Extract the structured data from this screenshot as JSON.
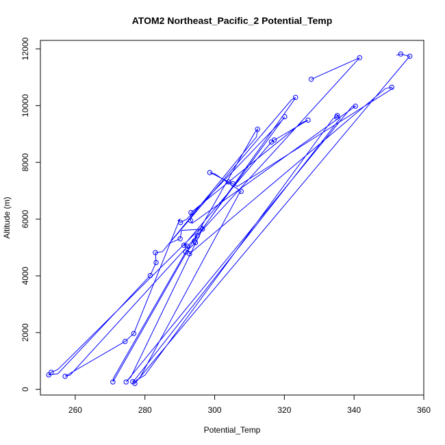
{
  "chart_data": {
    "type": "line",
    "title": "ATOM2 Northeast_Pacific_2 Potential_Temp",
    "xlabel": "Potential_Temp",
    "ylabel": "Altitude (m)",
    "xlim": [
      250,
      360
    ],
    "ylim": [
      -200,
      12300
    ],
    "xticks": [
      260,
      280,
      300,
      320,
      340,
      360
    ],
    "yticks": [
      0,
      2000,
      4000,
      6000,
      8000,
      10000,
      12000
    ],
    "grid": false,
    "color": "#0000ff",
    "series": [
      {
        "points": [
          [
            252.4,
            510
          ],
          [
            253.1,
            600
          ],
          [
            281.5,
            4010
          ],
          [
            283.2,
            4470
          ],
          [
            283.0,
            4820
          ],
          [
            290.1,
            5310
          ],
          [
            291.2,
            5080
          ],
          [
            292.1,
            5050
          ],
          [
            291.7,
            4840
          ],
          [
            292.8,
            4780
          ],
          [
            294.5,
            5170
          ],
          [
            294.2,
            5230
          ],
          [
            295.0,
            5410
          ],
          [
            296.5,
            5650
          ],
          [
            293.1,
            5950
          ],
          [
            290.2,
            5880
          ],
          [
            293.2,
            6230
          ],
          [
            298.6,
            7640
          ],
          [
            304.0,
            7310
          ],
          [
            305.2,
            7250
          ],
          [
            307.6,
            6980
          ],
          [
            316.3,
            8720
          ],
          [
            317.1,
            8790
          ],
          [
            326.8,
            9490
          ],
          [
            335.0,
            9600
          ],
          [
            335.2,
            9650
          ],
          [
            340.4,
            9980
          ],
          [
            350.8,
            10650
          ],
          [
            341.6,
            11690
          ],
          [
            327.7,
            10930
          ],
          [
            353.4,
            11820
          ],
          [
            356.0,
            11740
          ],
          [
            257.1,
            460
          ],
          [
            274.3,
            1690
          ],
          [
            276.8,
            1970
          ],
          [
            312.3,
            9170
          ],
          [
            270.8,
            260
          ],
          [
            320.1,
            9610
          ],
          [
            274.6,
            260
          ],
          [
            323.2,
            10290
          ],
          [
            276.5,
            270
          ],
          [
            277.1,
            210
          ]
        ],
        "path": [
          [
            352.2,
            11780
          ],
          [
            353.4,
            11820
          ],
          [
            356.0,
            11740
          ],
          [
            355.0,
            11600
          ],
          [
            277.1,
            210
          ],
          [
            276.5,
            270
          ],
          [
            277.5,
            400
          ],
          [
            336.0,
            9550
          ],
          [
            335.2,
            9650
          ],
          [
            335.0,
            9600
          ],
          [
            334.0,
            9550
          ],
          [
            280.0,
            500
          ],
          [
            277.3,
            300
          ],
          [
            278.5,
            400
          ],
          [
            307.0,
            6900
          ],
          [
            307.6,
            6980
          ],
          [
            300.0,
            7600
          ],
          [
            298.6,
            7640
          ],
          [
            299.7,
            7580
          ],
          [
            304.0,
            7310
          ],
          [
            305.2,
            7250
          ],
          [
            306.5,
            7150
          ],
          [
            351.0,
            10600
          ],
          [
            350.8,
            10650
          ],
          [
            349.0,
            10600
          ],
          [
            292.8,
            4780
          ],
          [
            292.1,
            5050
          ],
          [
            291.2,
            5080
          ],
          [
            292.0,
            5200
          ],
          [
            316.3,
            8720
          ],
          [
            317.1,
            8790
          ],
          [
            318.0,
            8850
          ],
          [
            326.8,
            9490
          ],
          [
            325.0,
            9400
          ],
          [
            293.2,
            6230
          ],
          [
            293.1,
            5950
          ],
          [
            293.5,
            5850
          ],
          [
            340.4,
            9980
          ],
          [
            339.5,
            9980
          ],
          [
            274.6,
            260
          ],
          [
            276.0,
            450
          ],
          [
            296.5,
            5650
          ],
          [
            322.5,
            10150
          ],
          [
            323.2,
            10290
          ],
          [
            322.0,
            10200
          ],
          [
            287.0,
            5150
          ],
          [
            290.1,
            5310
          ],
          [
            290.5,
            5600
          ],
          [
            296.5,
            5650
          ],
          [
            296.5,
            5750
          ],
          [
            255.0,
            700
          ],
          [
            253.1,
            600
          ],
          [
            252.4,
            510
          ],
          [
            255.0,
            550
          ],
          [
            281.5,
            4010
          ],
          [
            283.2,
            4470
          ],
          [
            283.0,
            4820
          ],
          [
            285.0,
            4850
          ],
          [
            312.0,
            8900
          ],
          [
            312.3,
            9170
          ],
          [
            311.5,
            9050
          ],
          [
            270.8,
            260
          ],
          [
            271.0,
            400
          ],
          [
            291.7,
            4840
          ],
          [
            294.5,
            5170
          ],
          [
            294.2,
            5230
          ],
          [
            295.0,
            5410
          ],
          [
            320.1,
            9610
          ],
          [
            319.5,
            9500
          ],
          [
            292.0,
            6000
          ],
          [
            290.2,
            5880
          ],
          [
            289.5,
            5950
          ],
          [
            290.0,
            6000
          ],
          [
            276.8,
            1970
          ],
          [
            274.3,
            1690
          ],
          [
            257.1,
            460
          ],
          [
            258.5,
            500
          ],
          [
            341.6,
            11690
          ],
          [
            327.7,
            10930
          ]
        ]
      }
    ]
  }
}
